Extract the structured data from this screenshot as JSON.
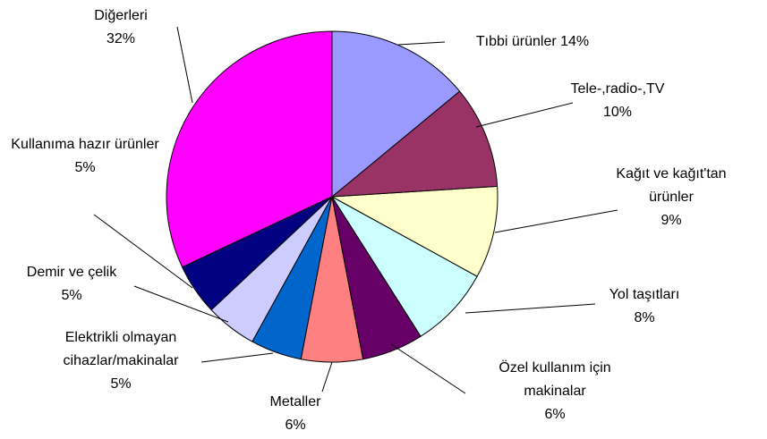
{
  "chart_data": {
    "type": "pie",
    "categories": [
      "Tıbbi ürünler",
      "Tele-,radio-,TV",
      "Kağıt ve kağıt'tan ürünler",
      "Yol taşıtları",
      "Özel kullanım için makinalar",
      "Metaller",
      "Elektrikli olmayan cihazlar/makinalar",
      "Demir ve çelik",
      "Kullanıma hazır ürünler",
      "Diğerleri"
    ],
    "values": [
      14,
      10,
      9,
      8,
      6,
      6,
      5,
      5,
      5,
      32
    ],
    "value_labels": [
      "14%",
      "10%",
      "9%",
      "8%",
      "6%",
      "6%",
      "5%",
      "5%",
      "5%",
      "32%"
    ],
    "colors": [
      "#9999ff",
      "#993366",
      "#ffffcc",
      "#ccffff",
      "#660066",
      "#ff8080",
      "#0066cc",
      "#ccccff",
      "#000080",
      "#ff00ff"
    ]
  }
}
